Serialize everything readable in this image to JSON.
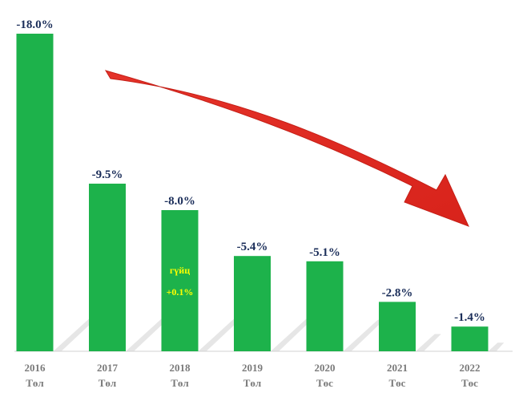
{
  "chart_data": {
    "type": "bar",
    "title": "",
    "xlabel": "",
    "ylabel": "",
    "categories": [
      "2016",
      "2017",
      "2018",
      "2019",
      "2020",
      "2021",
      "2022"
    ],
    "category_sublabels": [
      "Төл",
      "Төл",
      "Төл",
      "Төл",
      "Төс",
      "Төс",
      "Төс"
    ],
    "values": [
      -18.0,
      -9.5,
      -8.0,
      -5.4,
      -5.1,
      -2.8,
      -1.4
    ],
    "data_labels": [
      "-18.0%",
      "-9.5%",
      "-8.0%",
      "-5.4%",
      "-5.1%",
      "-2.8%",
      "-1.4%"
    ],
    "ylim": [
      -18,
      0
    ],
    "grid": false,
    "legend": "none",
    "annotations": [
      {
        "category": "2018",
        "lines": [
          "гүйц",
          "+0.1%"
        ],
        "color": "#ffff00"
      }
    ],
    "trend_arrow": {
      "direction": "downward",
      "color": "#e5332a"
    },
    "colors": {
      "bar": "#1db24b",
      "value_text": "#1a2d59",
      "category_text": "#7a7a7a"
    }
  }
}
